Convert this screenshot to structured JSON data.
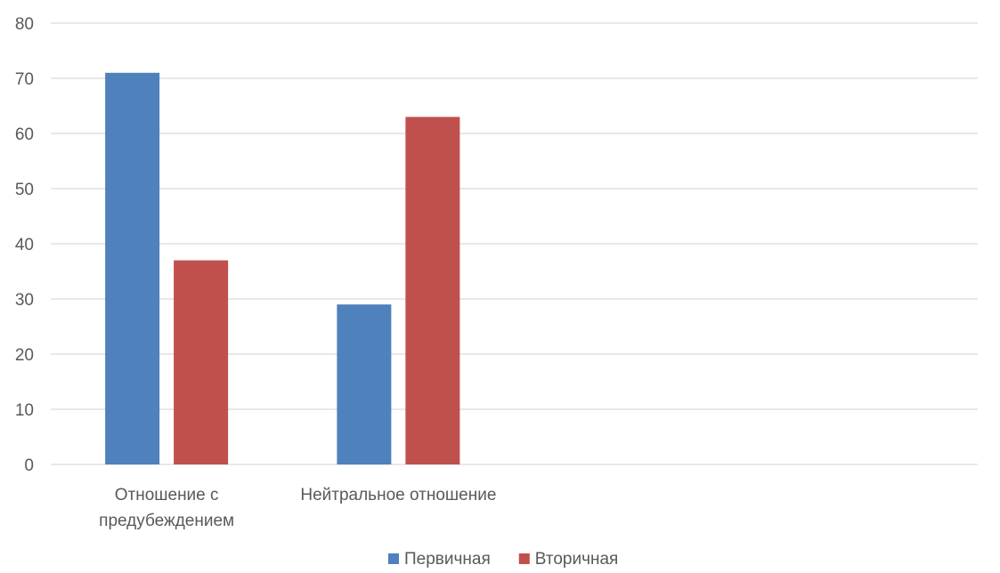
{
  "chart_data": {
    "type": "bar",
    "title": "",
    "xlabel": "",
    "ylabel": "",
    "ylim": [
      0,
      80
    ],
    "yticks": [
      0,
      10,
      20,
      30,
      40,
      50,
      60,
      70,
      80
    ],
    "grid": true,
    "legend_position": "bottom",
    "categories": [
      [
        "Отношение с",
        "предубеждением"
      ],
      [
        "Нейтральное отношение"
      ],
      [],
      []
    ],
    "series": [
      {
        "name": "Первичная",
        "color": "#4F81BD",
        "values": [
          71,
          29,
          null,
          null
        ]
      },
      {
        "name": "Вторичная",
        "color": "#C0504D",
        "values": [
          37,
          63,
          null,
          null
        ]
      }
    ]
  }
}
